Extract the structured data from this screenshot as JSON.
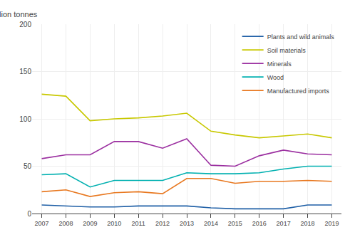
{
  "chart_data": {
    "type": "line",
    "ylabel": "Million tonnes",
    "x": [
      2007,
      2008,
      2009,
      2010,
      2011,
      2012,
      2013,
      2014,
      2015,
      2016,
      2017,
      2018,
      2019
    ],
    "series": [
      {
        "name": "Plants and wild animals",
        "color": "#1f5fa6",
        "values": [
          9,
          8,
          7,
          7,
          8,
          8,
          8,
          6,
          5,
          5,
          5,
          9,
          9
        ]
      },
      {
        "name": "Soil materials",
        "color": "#c8c800",
        "values": [
          126,
          124,
          98,
          100,
          101,
          103,
          106,
          87,
          83,
          80,
          82,
          84,
          80
        ]
      },
      {
        "name": "Minerals",
        "color": "#9b2fa0",
        "values": [
          58,
          62,
          62,
          76,
          76,
          69,
          79,
          51,
          50,
          61,
          67,
          63,
          62
        ]
      },
      {
        "name": "Wood",
        "color": "#00b0b0",
        "values": [
          41,
          42,
          28,
          35,
          35,
          35,
          43,
          42,
          42,
          43,
          47,
          50,
          50
        ]
      },
      {
        "name": "Manufactured imports",
        "color": "#e87820",
        "values": [
          23,
          25,
          18,
          22,
          23,
          21,
          37,
          37,
          32,
          34,
          34,
          35,
          34
        ]
      }
    ],
    "xlim": [
      2006.6,
      2019.4
    ],
    "xticks": [
      2007,
      2008,
      2009,
      2010,
      2011,
      2012,
      2013,
      2014,
      2015,
      2016,
      2017,
      2018,
      2019
    ],
    "ylim": [
      0,
      200
    ],
    "yticks": [
      0,
      50,
      100,
      150,
      200
    ],
    "grid": true,
    "legend": "upper right"
  }
}
